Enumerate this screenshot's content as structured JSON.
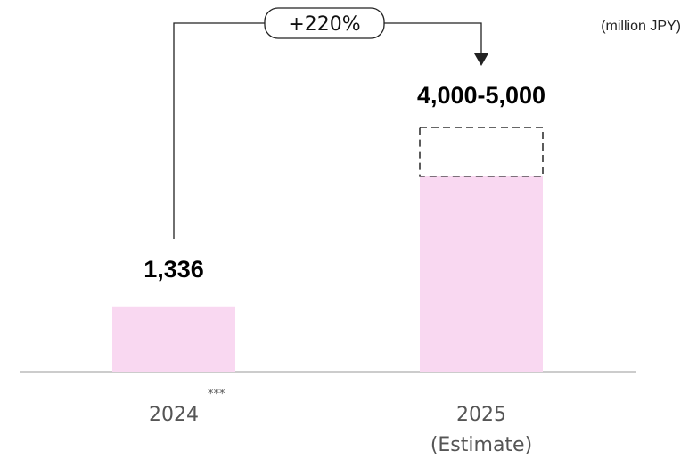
{
  "chart_data": {
    "type": "bar",
    "unit": "(million JPY)",
    "categories": [
      {
        "label": "2024",
        "footnote": "***",
        "sublabel": ""
      },
      {
        "label": "2025",
        "footnote": "",
        "sublabel": "(Estimate)"
      }
    ],
    "values": [
      1336,
      4000
    ],
    "ranges": [
      null,
      [
        4000,
        5000
      ]
    ],
    "value_labels": [
      "1,336",
      "4,000-5,000"
    ],
    "ylim": [
      0,
      5000
    ],
    "grid": false,
    "growth_annotation": {
      "text": "+220%",
      "from": "2024",
      "to": "2025"
    },
    "colors": {
      "bar": "#f9d8f1",
      "range_outline": "#333333",
      "baseline": "#cccccc",
      "connector": "#222222"
    }
  }
}
